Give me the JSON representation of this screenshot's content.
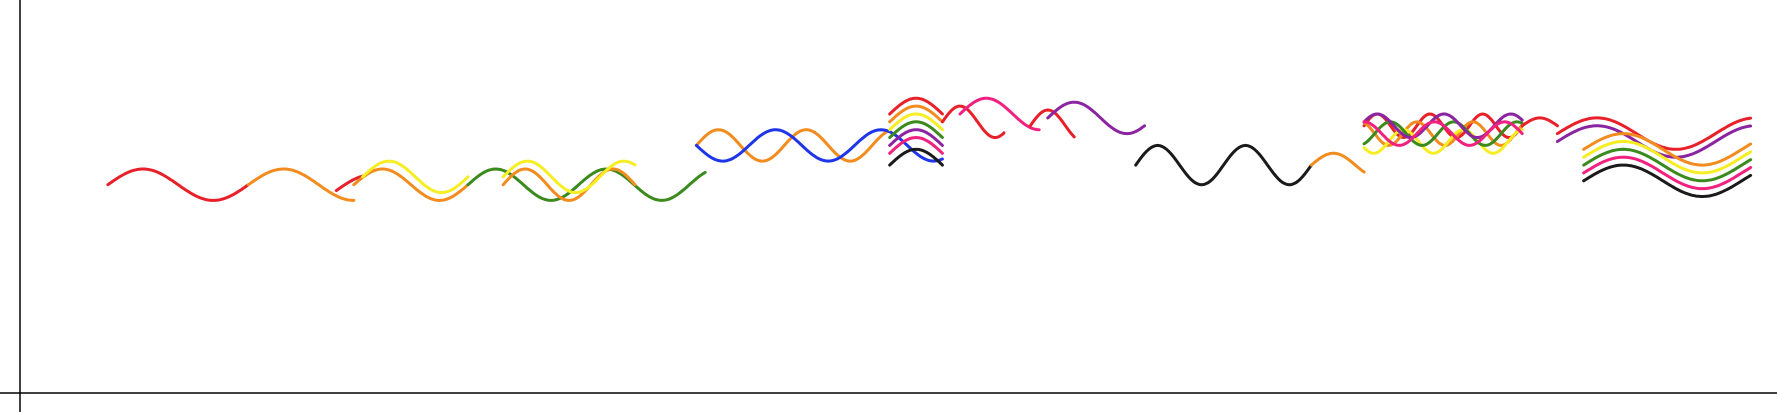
{
  "chart_data": {
    "type": "line",
    "title": "",
    "xlabel": "",
    "ylabel": "",
    "grid": false,
    "legend": "none",
    "xlim": [
      0,
      100
    ],
    "ylim": [
      0,
      100
    ],
    "series": [
      {
        "color": "#e8202a",
        "x": [
          5,
          13
        ],
        "y": [
          53,
          53
        ],
        "period": 8,
        "amplitude": 4,
        "phase": 0
      },
      {
        "color": "#f28c1e",
        "x": [
          13,
          19
        ],
        "y": [
          53,
          53
        ],
        "period": 8,
        "amplitude": 4,
        "phase": 0
      },
      {
        "color": "#e8202a",
        "x": [
          18,
          19.5
        ],
        "y": [
          51.5,
          51.5
        ],
        "period": 8,
        "amplitude": 4,
        "phase": 0
      },
      {
        "color": "#f28c1e",
        "x": [
          19,
          25.5
        ],
        "y": [
          53,
          53
        ],
        "period": 6.5,
        "amplitude": 4,
        "phase": 0
      },
      {
        "color": "#f6ee22",
        "x": [
          19.5,
          25.5
        ],
        "y": [
          55,
          55
        ],
        "period": 6,
        "amplitude": 4,
        "phase": 0
      },
      {
        "color": "#3b8a1e",
        "x": [
          25.5,
          39
        ],
        "y": [
          53,
          53
        ],
        "period": 6.3,
        "amplitude": 4,
        "phase": 0
      },
      {
        "color": "#f28c1e",
        "x": [
          27.5,
          35
        ],
        "y": [
          53,
          53
        ],
        "period": 5,
        "amplitude": 4,
        "phase": 0
      },
      {
        "color": "#f6ee22",
        "x": [
          27.5,
          35
        ],
        "y": [
          55,
          55
        ],
        "period": 5.5,
        "amplitude": 4,
        "phase": 0
      },
      {
        "color": "#f28c1e",
        "x": [
          38.5,
          49.5
        ],
        "y": [
          63,
          63
        ],
        "period": 5,
        "amplitude": 4,
        "phase": 0
      },
      {
        "color": "#1f35e8",
        "x": [
          38.5,
          52.5
        ],
        "y": [
          63,
          63
        ],
        "period": 6,
        "amplitude": 4,
        "phase": 3
      },
      {
        "color": "#e8202a",
        "x": [
          49.5,
          52.5
        ],
        "y": [
          71,
          71
        ],
        "period": 6,
        "amplitude": 4,
        "phase": 0
      },
      {
        "color": "#f28c1e",
        "x": [
          49.5,
          52.5
        ],
        "y": [
          69,
          69
        ],
        "period": 6,
        "amplitude": 4,
        "phase": 0
      },
      {
        "color": "#f6ee22",
        "x": [
          49.5,
          52.5
        ],
        "y": [
          67,
          67
        ],
        "period": 6,
        "amplitude": 4,
        "phase": 0
      },
      {
        "color": "#3b8a1e",
        "x": [
          49.5,
          52.5
        ],
        "y": [
          65,
          65
        ],
        "period": 6,
        "amplitude": 4,
        "phase": 0
      },
      {
        "color": "#8b24a0",
        "x": [
          49.5,
          52.5
        ],
        "y": [
          63,
          63
        ],
        "period": 6,
        "amplitude": 4,
        "phase": 0
      },
      {
        "color": "#f0217f",
        "x": [
          49.5,
          52.5
        ],
        "y": [
          61,
          61
        ],
        "period": 6,
        "amplitude": 4,
        "phase": 0
      },
      {
        "color": "#1a1a1a",
        "x": [
          49.5,
          52.5
        ],
        "y": [
          58,
          58
        ],
        "period": 6,
        "amplitude": 4,
        "phase": 0
      },
      {
        "color": "#e8202a",
        "x": [
          52.5,
          56
        ],
        "y": [
          69,
          69
        ],
        "period": 4,
        "amplitude": 4,
        "phase": 0
      },
      {
        "color": "#f0217f",
        "x": [
          53.5,
          58
        ],
        "y": [
          71,
          71
        ],
        "period": 6,
        "amplitude": 4,
        "phase": 0
      },
      {
        "color": "#e8202a",
        "x": [
          57.5,
          60
        ],
        "y": [
          68,
          68
        ],
        "period": 4,
        "amplitude": 4,
        "phase": 0
      },
      {
        "color": "#8b24a0",
        "x": [
          58.5,
          64
        ],
        "y": [
          70,
          70
        ],
        "period": 6,
        "amplitude": 4,
        "phase": 0
      },
      {
        "color": "#1a1a1a",
        "x": [
          63.5,
          73.5
        ],
        "y": [
          58,
          58
        ],
        "period": 5,
        "amplitude": 5,
        "phase": 0
      },
      {
        "color": "#f28c1e",
        "x": [
          73.5,
          76.5
        ],
        "y": [
          58,
          58
        ],
        "period": 5,
        "amplitude": 3,
        "phase": 0
      },
      {
        "color": "#e8202a",
        "x": [
          76.5,
          85.5
        ],
        "y": [
          68,
          68
        ],
        "period": 3,
        "amplitude": 3,
        "phase": 0
      },
      {
        "color": "#f28c1e",
        "x": [
          76.5,
          85.5
        ],
        "y": [
          66,
          66
        ],
        "period": 3.2,
        "amplitude": 3,
        "phase": 1
      },
      {
        "color": "#f6ee22",
        "x": [
          76.5,
          85.5
        ],
        "y": [
          64,
          64
        ],
        "period": 3.4,
        "amplitude": 3,
        "phase": 2
      },
      {
        "color": "#3b8a1e",
        "x": [
          76.5,
          85.5
        ],
        "y": [
          66,
          66
        ],
        "period": 3.6,
        "amplitude": 3,
        "phase": 3
      },
      {
        "color": "#8b24a0",
        "x": [
          76.5,
          85.5
        ],
        "y": [
          68,
          68
        ],
        "period": 3.8,
        "amplitude": 3,
        "phase": 4
      },
      {
        "color": "#f0217f",
        "x": [
          76.5,
          85.5
        ],
        "y": [
          66,
          66
        ],
        "period": 4,
        "amplitude": 3,
        "phase": 5
      },
      {
        "color": "#e8202a",
        "x": [
          85.5,
          87.5
        ],
        "y": [
          68,
          68
        ],
        "period": 4,
        "amplitude": 2,
        "phase": 0
      },
      {
        "color": "#e8202a",
        "x": [
          87.5,
          98.5
        ],
        "y": [
          66,
          66
        ],
        "period": 9,
        "amplitude": 4,
        "phase": 0
      },
      {
        "color": "#8b24a0",
        "x": [
          87.5,
          98.5
        ],
        "y": [
          64,
          64
        ],
        "period": 9,
        "amplitude": 4,
        "phase": 0
      },
      {
        "color": "#f28c1e",
        "x": [
          89,
          98.5
        ],
        "y": [
          62,
          62
        ],
        "period": 9,
        "amplitude": 4,
        "phase": 0
      },
      {
        "color": "#f6ee22",
        "x": [
          89,
          98.5
        ],
        "y": [
          60,
          60
        ],
        "period": 9,
        "amplitude": 4,
        "phase": 0
      },
      {
        "color": "#3b8a1e",
        "x": [
          89,
          98.5
        ],
        "y": [
          58,
          58
        ],
        "period": 9,
        "amplitude": 4,
        "phase": 0
      },
      {
        "color": "#f0217f",
        "x": [
          89,
          98.5
        ],
        "y": [
          56,
          56
        ],
        "period": 9,
        "amplitude": 4,
        "phase": 0
      },
      {
        "color": "#1a1a1a",
        "x": [
          89,
          98.5
        ],
        "y": [
          54,
          54
        ],
        "period": 9,
        "amplitude": 4,
        "phase": 0
      }
    ]
  }
}
